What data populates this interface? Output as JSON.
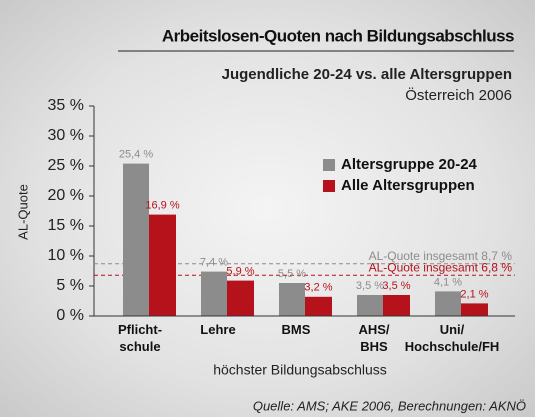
{
  "chart_data": {
    "type": "bar",
    "title": "Arbeitslosen-Quoten nach Bildungsabschluss",
    "subtitle": "Jugendliche 20-24 vs. alle Altersgruppen",
    "subtitle2": "Österreich 2006",
    "y_label": "AL-Quote",
    "x_label": "höchster Bildungsabschluss",
    "source": "Quelle: AMS; AKE 2006,  Berechnungen: AKNÖ",
    "categories": [
      "Pflicht-\nschule",
      "Lehre",
      "BMS",
      "AHS/\nBHS",
      "Uni/\nHochschule/FH"
    ],
    "series": [
      {
        "name": "Altersgruppe 20-24",
        "color": "#8c8c8c",
        "values": [
          25.4,
          7.4,
          5.5,
          3.5,
          4.1
        ],
        "value_labels": [
          "25,4 %",
          "7,4 %",
          "5,5 %",
          "3,5 %",
          "4,1 %"
        ]
      },
      {
        "name": "Alle Altersgruppen",
        "color": "#b5121b",
        "values": [
          16.9,
          5.9,
          3.2,
          3.5,
          2.1
        ],
        "value_labels": [
          "16,9 %",
          "5,9 %",
          "3,2 %",
          "3,5 %",
          "2,1 %"
        ]
      }
    ],
    "reference_lines": [
      {
        "label": "AL-Quote insgesamt 8,7 %",
        "value": 8.7,
        "color": "#8c8c8c"
      },
      {
        "label": "AL-Quote insgesamt 6,8 %",
        "value": 6.8,
        "color": "#b5121b"
      }
    ],
    "ylim": [
      0,
      35
    ],
    "yticks": [
      {
        "value": 0,
        "label": "0 %"
      },
      {
        "value": 5,
        "label": "5 %"
      },
      {
        "value": 10,
        "label": "10 %"
      },
      {
        "value": 15,
        "label": "15 %"
      },
      {
        "value": 20,
        "label": "20 %"
      },
      {
        "value": 25,
        "label": "25 %"
      },
      {
        "value": 30,
        "label": "30 %"
      },
      {
        "value": 35,
        "label": "35 %"
      }
    ]
  }
}
